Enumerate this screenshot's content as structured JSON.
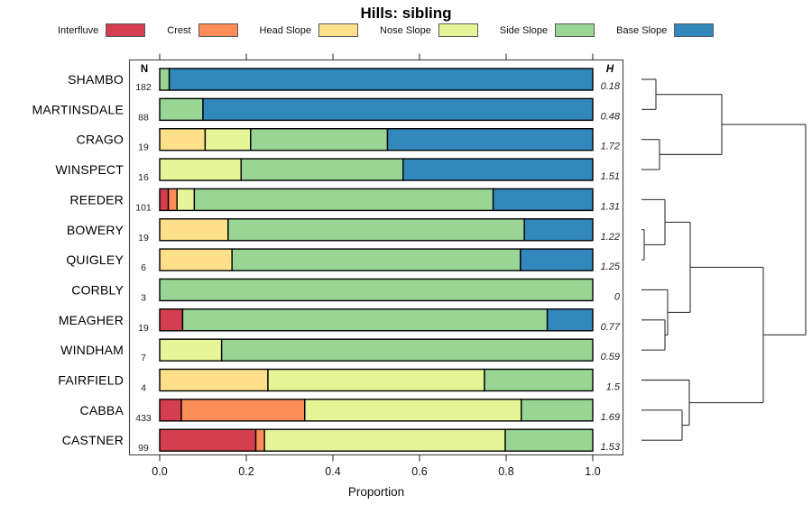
{
  "title": "Hills: sibling",
  "columns": {
    "n_header": "N",
    "h_header": "H"
  },
  "xaxis": {
    "label": "Proportion",
    "ticks": [
      "0.0",
      "0.2",
      "0.4",
      "0.6",
      "0.8",
      "1.0"
    ],
    "tick_values": [
      0,
      0.2,
      0.4,
      0.6,
      0.8,
      1.0
    ]
  },
  "legend": [
    {
      "label": "Interfluve",
      "color": "#D53E4F"
    },
    {
      "label": "Crest",
      "color": "#FC8D59"
    },
    {
      "label": "Head Slope",
      "color": "#FEE08B"
    },
    {
      "label": "Nose Slope",
      "color": "#E6F598"
    },
    {
      "label": "Side Slope",
      "color": "#99D594"
    },
    {
      "label": "Base Slope",
      "color": "#3288BD"
    }
  ],
  "chart_data": {
    "type": "bar",
    "stacked": true,
    "orientation": "horizontal",
    "title": "Hills: sibling",
    "xlabel": "Proportion",
    "xlim": [
      0,
      1
    ],
    "grid": false,
    "categories": [
      "Interfluve",
      "Crest",
      "Head Slope",
      "Nose Slope",
      "Side Slope",
      "Base Slope"
    ],
    "series": [
      {
        "name": "SHAMBO",
        "n": 182,
        "h": "0.18",
        "values": [
          0,
          0,
          0,
          0,
          0.022,
          0.978
        ]
      },
      {
        "name": "MARTINSDALE",
        "n": 88,
        "h": "0.48",
        "values": [
          0,
          0,
          0,
          0,
          0.1,
          0.9
        ]
      },
      {
        "name": "CRAGO",
        "n": 19,
        "h": "1.72",
        "values": [
          0,
          0,
          0.105,
          0.105,
          0.316,
          0.474
        ]
      },
      {
        "name": "WINSPECT",
        "n": 16,
        "h": "1.51",
        "values": [
          0,
          0,
          0,
          0.188,
          0.374,
          0.438
        ]
      },
      {
        "name": "REEDER",
        "n": 101,
        "h": "1.31",
        "values": [
          0.02,
          0.02,
          0,
          0.04,
          0.69,
          0.23
        ]
      },
      {
        "name": "BOWERY",
        "n": 19,
        "h": "1.22",
        "values": [
          0,
          0,
          0.158,
          0,
          0.684,
          0.158
        ]
      },
      {
        "name": "QUIGLEY",
        "n": 6,
        "h": "1.25",
        "values": [
          0,
          0,
          0.167,
          0,
          0.666,
          0.167
        ]
      },
      {
        "name": "CORBLY",
        "n": 3,
        "h": "0",
        "values": [
          0,
          0,
          0,
          0,
          1,
          0
        ]
      },
      {
        "name": "MEAGHER",
        "n": 19,
        "h": "0.77",
        "values": [
          0.053,
          0,
          0,
          0,
          0.842,
          0.105
        ]
      },
      {
        "name": "WINDHAM",
        "n": 7,
        "h": "0.59",
        "values": [
          0,
          0,
          0,
          0.143,
          0.857,
          0
        ]
      },
      {
        "name": "FAIRFIELD",
        "n": 4,
        "h": "1.5",
        "values": [
          0,
          0,
          0.25,
          0.5,
          0.25,
          0
        ]
      },
      {
        "name": "CABBA",
        "n": 433,
        "h": "1.69",
        "values": [
          0.05,
          0.285,
          0,
          0.5,
          0.165,
          0
        ]
      },
      {
        "name": "CASTNER",
        "n": 99,
        "h": "1.53",
        "values": [
          0.222,
          0.02,
          0,
          0.556,
          0.202,
          0
        ]
      }
    ],
    "dendrogram": {
      "join_x": 893,
      "children": [
        {
          "join_x": 800,
          "children": [
            {
              "join_x": 727,
              "children": [
                {
                  "leaf": "SHAMBO"
                },
                {
                  "leaf": "MARTINSDALE"
                }
              ]
            },
            {
              "join_x": 731,
              "children": [
                {
                  "leaf": "CRAGO"
                },
                {
                  "leaf": "WINSPECT"
                }
              ]
            }
          ]
        },
        {
          "join_x": 846,
          "children": [
            {
              "join_x": 765,
              "children": [
                {
                  "join_x": 737,
                  "children": [
                    {
                      "leaf": "REEDER"
                    },
                    {
                      "join_x": 714,
                      "children": [
                        {
                          "leaf": "BOWERY"
                        },
                        {
                          "leaf": "QUIGLEY"
                        }
                      ]
                    }
                  ]
                },
                {
                  "join_x": 740,
                  "children": [
                    {
                      "leaf": "CORBLY"
                    },
                    {
                      "join_x": 737,
                      "children": [
                        {
                          "leaf": "MEAGHER"
                        },
                        {
                          "leaf": "WINDHAM"
                        }
                      ]
                    }
                  ]
                }
              ]
            },
            {
              "join_x": 764,
              "children": [
                {
                  "leaf": "FAIRFIELD"
                },
                {
                  "join_x": 756,
                  "children": [
                    {
                      "leaf": "CABBA"
                    },
                    {
                      "leaf": "CASTNER"
                    }
                  ]
                }
              ]
            }
          ]
        }
      ]
    }
  }
}
